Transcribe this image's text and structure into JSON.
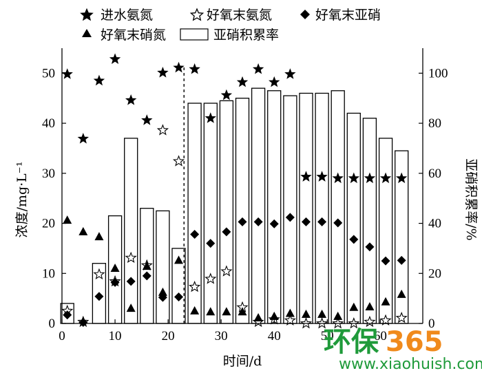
{
  "chart_data": {
    "type": "bar+scatter",
    "xlabel": "时间/d",
    "ylabel_left": "浓度/mg·L⁻¹",
    "ylabel_right": "亚硝积累率/%",
    "xlim": [
      0,
      68
    ],
    "ylim_left": [
      0,
      55
    ],
    "ylim_right": [
      0,
      110
    ],
    "x_ticks": [
      0,
      10,
      20,
      30,
      40,
      50,
      60
    ],
    "y_left_ticks": [
      0,
      10,
      20,
      30,
      40,
      50
    ],
    "y_right_ticks": [
      0,
      20,
      40,
      60,
      80,
      100
    ],
    "phase_divider_x": 23,
    "legend": [
      "进水氨氮",
      "好氧末氨氮",
      "好氧末亚硝",
      "好氧末硝氮",
      "亚硝积累率"
    ],
    "bars": {
      "name": "亚硝积累率",
      "axis": "right",
      "x": [
        1,
        7,
        10,
        13,
        16,
        19,
        22,
        25,
        28,
        31,
        34,
        37,
        40,
        43,
        46,
        49,
        52,
        55,
        58,
        61,
        64
      ],
      "values": [
        8,
        24,
        43,
        74,
        46,
        45,
        30,
        88,
        88,
        89,
        90,
        94,
        93,
        91,
        92,
        92,
        93,
        84,
        82,
        74,
        69
      ]
    },
    "series": [
      {
        "name": "进水氨氮",
        "marker": "star-filled",
        "axis": "left",
        "points": [
          [
            1,
            49.8
          ],
          [
            4,
            36.9
          ],
          [
            7,
            48.5
          ],
          [
            10,
            52.8
          ],
          [
            13,
            44.6
          ],
          [
            16,
            40.6
          ],
          [
            19,
            50.1
          ],
          [
            22,
            51.1
          ],
          [
            25,
            50.8
          ],
          [
            28,
            41.0
          ],
          [
            31,
            45.6
          ],
          [
            34,
            48.2
          ],
          [
            37,
            50.8
          ],
          [
            40,
            48.2
          ],
          [
            43,
            49.8
          ],
          [
            46,
            29.3
          ],
          [
            49,
            29.3
          ],
          [
            52,
            29.0
          ],
          [
            55,
            29.0
          ],
          [
            58,
            29.0
          ],
          [
            61,
            29.0
          ],
          [
            64,
            29.0
          ]
        ]
      },
      {
        "name": "好氧末氨氮",
        "marker": "star-open",
        "axis": "left",
        "points": [
          [
            1,
            2.5
          ],
          [
            4,
            0.3
          ],
          [
            7,
            9.8
          ],
          [
            10,
            8.4
          ],
          [
            13,
            13.1
          ],
          [
            16,
            11.6
          ],
          [
            19,
            38.6
          ],
          [
            22,
            32.4
          ],
          [
            25,
            7.3
          ],
          [
            28,
            8.9
          ],
          [
            31,
            10.4
          ],
          [
            34,
            3.2
          ],
          [
            37,
            0.3
          ],
          [
            40,
            0.8
          ],
          [
            43,
            0.6
          ],
          [
            46,
            0.0
          ],
          [
            49,
            0.0
          ],
          [
            52,
            0.0
          ],
          [
            55,
            0.0
          ],
          [
            58,
            0.3
          ],
          [
            61,
            0.6
          ],
          [
            64,
            1.1
          ]
        ]
      },
      {
        "name": "好氧末亚硝",
        "marker": "diamond",
        "axis": "left",
        "points": [
          [
            1,
            1.7
          ],
          [
            4,
            0.2
          ],
          [
            7,
            5.4
          ],
          [
            10,
            8.2
          ],
          [
            13,
            8.4
          ],
          [
            16,
            9.5
          ],
          [
            19,
            5.2
          ],
          [
            22,
            5.3
          ],
          [
            25,
            17.8
          ],
          [
            28,
            16.0
          ],
          [
            31,
            18.3
          ],
          [
            34,
            20.3
          ],
          [
            37,
            20.3
          ],
          [
            40,
            19.9
          ],
          [
            43,
            21.2
          ],
          [
            46,
            20.3
          ],
          [
            49,
            20.3
          ],
          [
            52,
            20.1
          ],
          [
            55,
            16.8
          ],
          [
            58,
            15.3
          ],
          [
            61,
            12.5
          ],
          [
            64,
            12.6
          ]
        ]
      },
      {
        "name": "好氧末硝氮",
        "marker": "triangle",
        "axis": "left",
        "points": [
          [
            1,
            20.6
          ],
          [
            4,
            18.3
          ],
          [
            7,
            17.3
          ],
          [
            10,
            11.0
          ],
          [
            13,
            3.0
          ],
          [
            16,
            11.4
          ],
          [
            19,
            6.2
          ],
          [
            22,
            12.6
          ],
          [
            25,
            2.5
          ],
          [
            28,
            2.3
          ],
          [
            31,
            2.3
          ],
          [
            34,
            2.3
          ],
          [
            37,
            1.1
          ],
          [
            40,
            1.4
          ],
          [
            43,
            2.0
          ],
          [
            46,
            1.8
          ],
          [
            49,
            1.8
          ],
          [
            52,
            1.4
          ],
          [
            55,
            3.2
          ],
          [
            58,
            3.3
          ],
          [
            61,
            4.3
          ],
          [
            64,
            5.8
          ]
        ]
      }
    ]
  },
  "watermark": {
    "logo_text_green": "环保",
    "logo_text_orange": "365",
    "url": "www.xiaohuish.com",
    "green": "#1f9a3a",
    "orange": "#f08a1c"
  }
}
